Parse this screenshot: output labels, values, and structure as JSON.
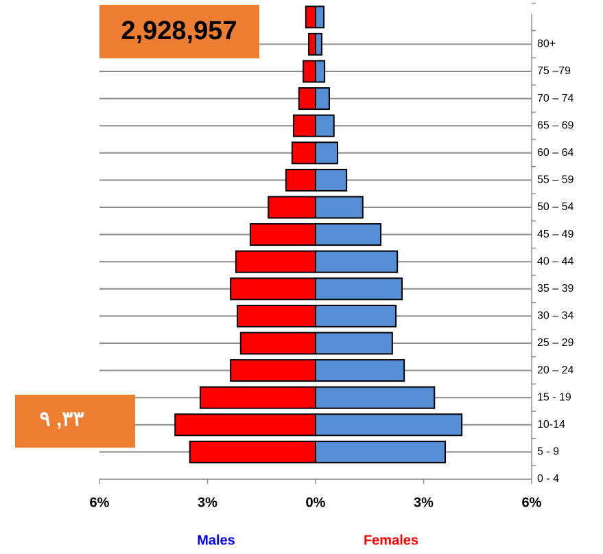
{
  "chart_data": {
    "type": "pyramid",
    "categories": [
      "0 -  4",
      "5 -  9",
      "10-14",
      "15 - 19",
      "20 – 24",
      "25 – 29",
      "30 – 34",
      "35 – 39",
      "40 – 44",
      "45 – 49",
      "50 – 54",
      "55 – 59",
      "60 – 64",
      "65 – 69",
      "70 – 74",
      "75 –79",
      "80+",
      null
    ],
    "series": [
      {
        "name": "Males",
        "color": "#ff0000",
        "name_color": "#0000ff",
        "side": "left",
        "values": [
          null,
          3.49,
          3.9,
          3.2,
          2.36,
          2.08,
          2.17,
          2.36,
          2.21,
          1.81,
          1.31,
          0.82,
          0.65,
          0.61,
          0.46,
          0.34,
          0.19,
          0.27
        ]
      },
      {
        "name": "Females",
        "color": "#558ed5",
        "name_color": "#ff0000",
        "side": "right",
        "values": [
          null,
          3.6,
          4.06,
          3.3,
          2.46,
          2.13,
          2.23,
          2.4,
          2.27,
          1.81,
          1.31,
          0.86,
          0.61,
          0.51,
          0.38,
          0.25,
          0.17,
          0.23
        ]
      }
    ],
    "xlim": [
      -6,
      6
    ],
    "xticks": [
      {
        "value": -6,
        "label": "6%"
      },
      {
        "value": -3,
        "label": "3%"
      },
      {
        "value": 0,
        "label": "0%"
      },
      {
        "value": 3,
        "label": "3%"
      },
      {
        "value": 6,
        "label": "6%"
      }
    ],
    "grid": true,
    "annotations": [
      "2,928,957",
      "٣٣, ٩"
    ]
  }
}
